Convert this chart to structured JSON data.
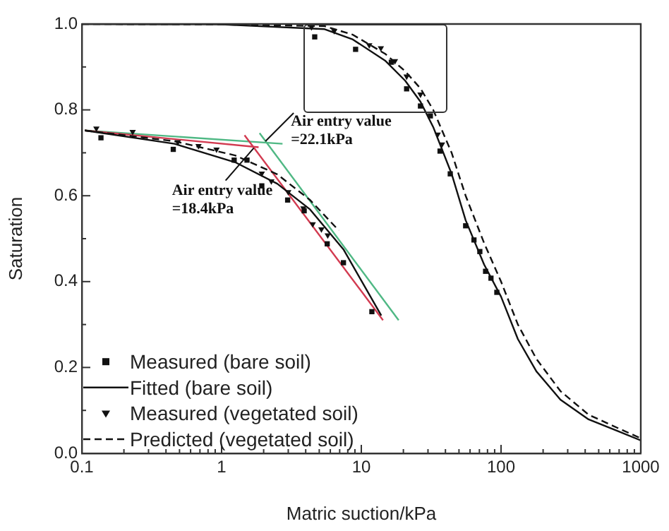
{
  "chart_data": {
    "type": "scatter",
    "xlabel": "Matric suction/kPa",
    "ylabel": "Saturation",
    "log": "x",
    "grid": false,
    "legend": "bottom left",
    "xlim": [
      0.1,
      1000
    ],
    "ylim": [
      0,
      1.0
    ],
    "xticks": [
      0.1,
      {
        "value": 0.2,
        "label": null
      },
      {
        "value": 0.3,
        "label": null
      },
      {
        "value": 0.4,
        "label": null
      },
      {
        "value": 0.5,
        "label": null
      },
      {
        "value": 0.6,
        "label": null
      },
      {
        "value": 0.7,
        "label": null
      },
      {
        "value": 0.8,
        "label": null
      },
      {
        "value": 0.9,
        "label": null
      },
      1,
      {
        "value": 2,
        "label": null
      },
      {
        "value": 3,
        "label": null
      },
      {
        "value": 4,
        "label": null
      },
      {
        "value": 5,
        "label": null
      },
      {
        "value": 6,
        "label": null
      },
      {
        "value": 7,
        "label": null
      },
      {
        "value": 8,
        "label": null
      },
      {
        "value": 9,
        "label": null
      },
      10,
      {
        "value": 20,
        "label": null
      },
      {
        "value": 30,
        "label": null
      },
      {
        "value": 40,
        "label": null
      },
      {
        "value": 50,
        "label": null
      },
      {
        "value": 60,
        "label": null
      },
      {
        "value": 70,
        "label": null
      },
      {
        "value": 80,
        "label": null
      },
      {
        "value": 90,
        "label": null
      },
      100,
      {
        "value": 200,
        "label": null
      },
      {
        "value": 300,
        "label": null
      },
      {
        "value": 400,
        "label": null
      },
      {
        "value": 500,
        "label": null
      },
      {
        "value": 600,
        "label": null
      },
      {
        "value": 700,
        "label": null
      },
      {
        "value": 800,
        "label": null
      },
      {
        "value": 900,
        "label": null
      },
      1000
    ],
    "yticks": [
      {
        "value": 0,
        "label": "0.0"
      },
      {
        "value": 0.1,
        "label": null
      },
      {
        "value": 0.2,
        "label": "0.2"
      },
      {
        "value": 0.3,
        "label": null
      },
      {
        "value": 0.4,
        "label": "0.4"
      },
      {
        "value": 0.5,
        "label": null
      },
      {
        "value": 0.6,
        "label": "0.6"
      },
      {
        "value": 0.7,
        "label": null
      },
      {
        "value": 0.8,
        "label": "0.8"
      },
      {
        "value": 0.9,
        "label": null
      },
      {
        "value": 1.0,
        "label": "1.0"
      }
    ],
    "series": [
      {
        "name": "Measured (bare soil)",
        "type": "scatter",
        "marker": "square",
        "color": "#111111",
        "x": [
          4.64,
          9.1,
          16.4,
          21.1,
          26.5,
          31.2,
          36.6,
          43.3,
          55.8,
          64,
          70.5,
          77.5,
          84.7,
          93.3
        ],
        "values": [
          0.97,
          0.941,
          0.911,
          0.849,
          0.809,
          0.786,
          0.704,
          0.651,
          0.53,
          0.497,
          0.47,
          0.424,
          0.408,
          0.375
        ]
      },
      {
        "name": "Fitted (bare soil)",
        "type": "line",
        "line_style": "solid",
        "marker": "none",
        "color": "#111111",
        "x": [
          0.1,
          1,
          5.46,
          8.7,
          14.9,
          20.6,
          26.5,
          32.7,
          44.3,
          55.8,
          75.6,
          100,
          132,
          179,
          266,
          423,
          673,
          1000
        ],
        "values": [
          1.0,
          0.999,
          0.988,
          0.964,
          0.914,
          0.868,
          0.819,
          0.76,
          0.651,
          0.543,
          0.44,
          0.365,
          0.266,
          0.191,
          0.125,
          0.079,
          0.053,
          0.03
        ]
      },
      {
        "name": "Measured (vegetated soil)",
        "type": "scatter",
        "marker": "triangle",
        "color": "#111111",
        "x": [
          4.4,
          6.4,
          11.4,
          13.8,
          17.4,
          21.1,
          26.5,
          29.8,
          35.2,
          37.8
        ],
        "values": [
          0.993,
          0.984,
          0.951,
          0.944,
          0.914,
          0.878,
          0.836,
          null,
          0.743,
          0.72
        ]
      },
      {
        "name": "Predicted (vegetated soil)",
        "type": "line",
        "line_style": "dashed",
        "marker": "none",
        "color": "#111111",
        "x": [
          0.1,
          1,
          5.46,
          8.7,
          14.9,
          20.6,
          26.5,
          32.7,
          44.3,
          55.8,
          75.6,
          100,
          132,
          179,
          266,
          423,
          673,
          1000
        ],
        "values": [
          1.0,
          0.999,
          0.995,
          0.975,
          0.93,
          0.89,
          0.85,
          0.8,
          0.7,
          0.6,
          0.49,
          0.4,
          0.3,
          0.22,
          0.145,
          0.09,
          0.06,
          0.035
        ]
      },
      {
        "type": "scatter",
        "marker": "square",
        "color": "#111111",
        "x": [
          0.137,
          0.451,
          1.23,
          1.52,
          1.94,
          2.97,
          3.9,
          5.7,
          7.45,
          11.9
        ],
        "values": [
          0.735,
          0.708,
          0.683,
          0.683,
          0.623,
          0.59,
          0.565,
          0.488,
          0.444,
          0.33
        ]
      },
      {
        "type": "scatter",
        "marker": "triangle",
        "color": "#111111",
        "x": [
          0.127,
          0.231,
          0.486,
          0.684,
          0.92,
          1.3,
          1.94,
          2.27,
          3.0,
          3.85,
          4.49,
          5.18,
          5.75
        ],
        "values": [
          0.757,
          0.749,
          0.725,
          0.716,
          0.708,
          null,
          0.652,
          0.634,
          0.609,
          0.571,
          0.534,
          0.522,
          0.508
        ]
      },
      {
        "type": "line",
        "line_style": "solid",
        "marker": "none",
        "color": "#111111",
        "x": [
          0.105,
          0.46,
          1.25,
          2.5,
          4.3,
          7.45,
          13.9
        ],
        "values": [
          0.752,
          0.721,
          0.678,
          0.628,
          0.568,
          0.475,
          0.321
        ]
      },
      {
        "type": "line",
        "line_style": "dashed",
        "marker": "none",
        "color": "#111111",
        "x": [
          0.105,
          0.46,
          1.25,
          2.5,
          4.3,
          6.9
        ],
        "values": [
          0.752,
          0.727,
          0.694,
          0.65,
          0.59,
          0.519
        ]
      },
      {
        "type": "line",
        "line_style": "solid",
        "marker": "none",
        "color": "#d23a50",
        "x": [
          0.105,
          1.84
        ],
        "values": [
          0.752,
          0.713
        ]
      },
      {
        "type": "line",
        "line_style": "solid",
        "marker": "none",
        "color": "#d23a50",
        "x": [
          1.46,
          14.3
        ],
        "values": [
          0.741,
          0.31
        ]
      },
      {
        "type": "line",
        "line_style": "solid",
        "marker": "none",
        "color": "#4fb884",
        "x": [
          0.105,
          2.73
        ],
        "values": [
          0.752,
          0.721
        ]
      },
      {
        "type": "line",
        "line_style": "solid",
        "marker": "none",
        "color": "#4fb884",
        "x": [
          1.87,
          18.5
        ],
        "values": [
          0.746,
          0.31
        ]
      }
    ],
    "annotations": [
      {
        "text": "Air entry value\n=22.1kPa",
        "x": 2.06,
        "y": 0.727
      },
      {
        "text": "Air entry value\n=18.4kPa",
        "x": 1.7,
        "y": 0.711
      }
    ]
  }
}
